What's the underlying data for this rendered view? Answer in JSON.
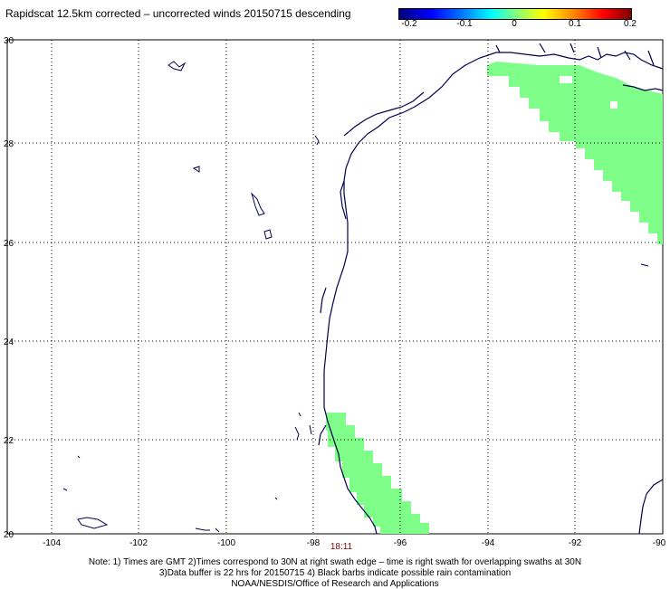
{
  "title": "Rapidscat 12.5km corrected – uncorrected winds 20150715 descending",
  "colorbar": {
    "labels": [
      "-0.2",
      "-0.1",
      "0",
      "0.1",
      "0.2"
    ],
    "min": -0.2,
    "max": 0.2
  },
  "map": {
    "lon_range": [
      -105,
      -90
    ],
    "lat_range": [
      20,
      30
    ],
    "lon_ticks": [
      "-104",
      "-102",
      "-100",
      "-98",
      "-96",
      "-94",
      "-92",
      "-90"
    ],
    "lat_ticks": [
      "30",
      "28",
      "26",
      "24",
      "22",
      "20"
    ],
    "swath_time": "18:11",
    "swath_fill_color": "#7fff8a",
    "coast_color": "#00004d",
    "grid": "dotted"
  },
  "notes": {
    "line1": "Note: 1) Times are GMT 2)Times correspond to 30N at right swath edge – time is right swath for overlapping swaths at 30N",
    "line2": "3)Data buffer is 22 hrs for 20150715 4) Black barbs indicate possible rain contamination",
    "line3": "NOAA/NESDIS/Office of Research and Applications"
  }
}
